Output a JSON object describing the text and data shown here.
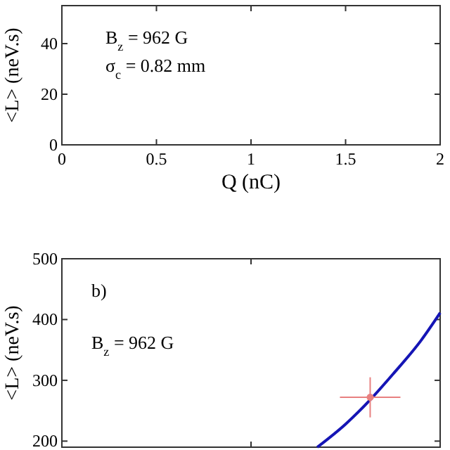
{
  "chart_data": [
    {
      "type": "line",
      "xlabel": "Q (nC)",
      "ylabel": "<L> (neV.s)",
      "xlim": [
        0,
        2
      ],
      "ylim": [
        0,
        55
      ],
      "xticks": [
        0,
        0.5,
        1,
        1.5,
        2
      ],
      "yticks": [
        0,
        20,
        40
      ],
      "annotations": [
        "B$_{z}$ = 962 G",
        "σ$_{c}$ = 0.82 mm"
      ]
    },
    {
      "type": "line",
      "ylabel": "<L> (neV.s)",
      "xlim": [
        0,
        2
      ],
      "ylim": [
        190,
        500
      ],
      "xticks": [
        {
          "value": 0,
          "label": null
        },
        {
          "value": 1,
          "label": null
        },
        {
          "value": 2,
          "label": null
        }
      ],
      "yticks": [
        200,
        300,
        400,
        500
      ],
      "tick_labels": "y",
      "annotations": [
        "b)",
        "B$_{z}$ = 962 G"
      ],
      "series": [
        {
          "type": "line",
          "color": "#1515b5",
          "x": [
            1.35,
            1.5,
            1.63,
            1.75,
            1.9,
            2
          ],
          "values": [
            190,
            228,
            268,
            310,
            366,
            411
          ]
        },
        {
          "type": "scatter",
          "color": "#e88080",
          "marker": "circle",
          "x": [
            1.63
          ],
          "values": [
            272
          ],
          "errors": [
            33
          ],
          "xerrors": [
            0.16
          ]
        }
      ]
    }
  ]
}
